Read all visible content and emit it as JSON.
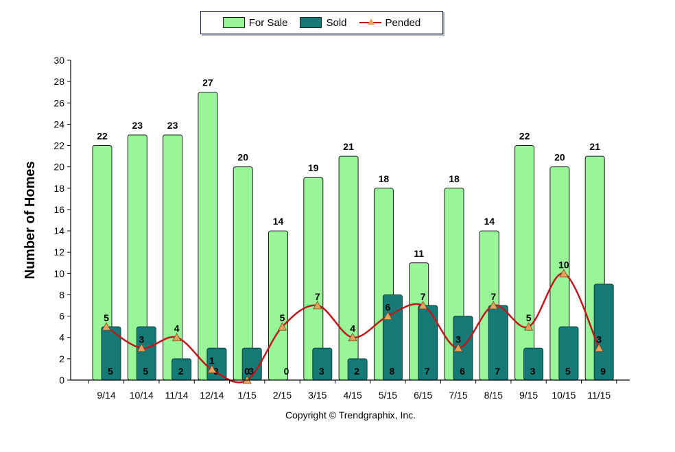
{
  "legend": {
    "for_sale": "For Sale",
    "sold": "Sold",
    "pended": "Pended"
  },
  "copyright": "Copyright © Trendgraphix, Inc.",
  "chart_data": {
    "type": "bar",
    "ylabel": "Number of Homes",
    "xlabel": "",
    "ylim": [
      0,
      30
    ],
    "y_ticks": [
      0,
      2,
      4,
      6,
      8,
      10,
      12,
      14,
      16,
      18,
      20,
      22,
      24,
      26,
      28,
      30
    ],
    "categories": [
      "9/14",
      "10/14",
      "11/14",
      "12/14",
      "1/15",
      "2/15",
      "3/15",
      "4/15",
      "5/15",
      "6/15",
      "7/15",
      "8/15",
      "9/15",
      "10/15",
      "11/15"
    ],
    "series": [
      {
        "name": "For Sale",
        "type": "bar",
        "color": "#98f598",
        "values": [
          22,
          23,
          23,
          27,
          20,
          14,
          19,
          21,
          18,
          11,
          18,
          14,
          22,
          20,
          21
        ]
      },
      {
        "name": "Sold",
        "type": "bar",
        "color": "#157a76",
        "values": [
          5,
          5,
          2,
          3,
          3,
          0,
          3,
          2,
          8,
          7,
          6,
          7,
          3,
          5,
          9
        ]
      },
      {
        "name": "Pended",
        "type": "line",
        "color": "#c0161b",
        "marker_color": "#e8a05a",
        "values": [
          5,
          3,
          4,
          1,
          0,
          5,
          7,
          4,
          6,
          7,
          3,
          7,
          5,
          10,
          3
        ]
      }
    ],
    "grid": false,
    "legend_position": "top-center"
  }
}
